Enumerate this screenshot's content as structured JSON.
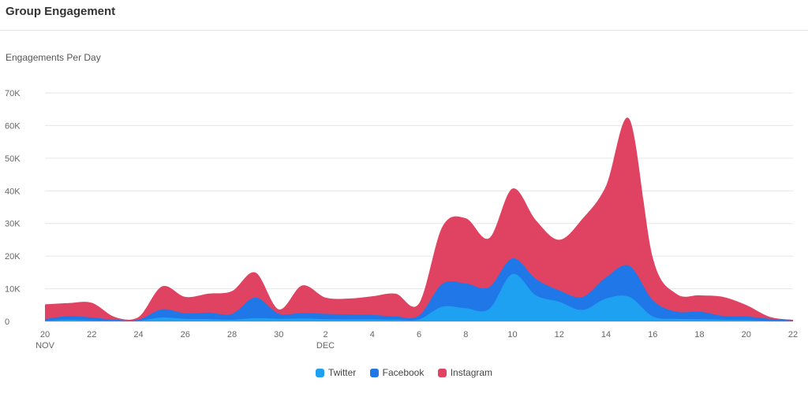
{
  "header": {
    "title": "Group Engagement"
  },
  "chart_data": {
    "type": "area",
    "stacked": true,
    "title": "Engagements Per Day",
    "xlabel": "",
    "ylabel": "",
    "ylim": [
      0,
      70000
    ],
    "yticks": [
      0,
      10000,
      20000,
      30000,
      40000,
      50000,
      60000,
      70000
    ],
    "ytick_labels": [
      "0",
      "10K",
      "20K",
      "30K",
      "40K",
      "50K",
      "60K",
      "70K"
    ],
    "grid": true,
    "legend_position": "bottom",
    "x": [
      "2023-11-20",
      "2023-11-21",
      "2023-11-22",
      "2023-11-23",
      "2023-11-24",
      "2023-11-25",
      "2023-11-26",
      "2023-11-27",
      "2023-11-28",
      "2023-11-29",
      "2023-11-30",
      "2023-12-01",
      "2023-12-02",
      "2023-12-03",
      "2023-12-04",
      "2023-12-05",
      "2023-12-06",
      "2023-12-07",
      "2023-12-08",
      "2023-12-09",
      "2023-12-10",
      "2023-12-11",
      "2023-12-12",
      "2023-12-13",
      "2023-12-14",
      "2023-12-15",
      "2023-12-16",
      "2023-12-17",
      "2023-12-18",
      "2023-12-19",
      "2023-12-20",
      "2023-12-21",
      "2023-12-22"
    ],
    "xtick_labels": [
      "20",
      "22",
      "24",
      "26",
      "28",
      "30",
      "2",
      "4",
      "6",
      "8",
      "10",
      "12",
      "14",
      "16",
      "18",
      "20",
      "22"
    ],
    "xtick_sublabels": [
      {
        "at": "20",
        "text": "NOV"
      },
      {
        "at": "2",
        "text": "DEC"
      }
    ],
    "series": [
      {
        "name": "Twitter",
        "color": "#1ea1f1",
        "values": [
          200,
          500,
          300,
          200,
          200,
          1200,
          800,
          700,
          500,
          1000,
          800,
          900,
          700,
          600,
          600,
          500,
          600,
          4500,
          4000,
          3800,
          14500,
          8000,
          6000,
          3500,
          7000,
          7500,
          1500,
          800,
          700,
          500,
          400,
          200,
          100
        ]
      },
      {
        "name": "Facebook",
        "color": "#1f77e8",
        "values": [
          500,
          1100,
          900,
          300,
          300,
          2500,
          1700,
          2000,
          1800,
          6300,
          1600,
          1700,
          1600,
          1500,
          1400,
          1000,
          1200,
          7000,
          7600,
          6700,
          4800,
          5000,
          3500,
          4000,
          6500,
          9500,
          5000,
          2200,
          2300,
          1200,
          1100,
          600,
          200
        ]
      },
      {
        "name": "Instagram",
        "color": "#e04362",
        "values": [
          4500,
          4000,
          4500,
          800,
          800,
          7000,
          5000,
          5800,
          7000,
          7700,
          1300,
          8400,
          5000,
          4900,
          5700,
          7000,
          3700,
          17500,
          20000,
          15000,
          21400,
          18000,
          15500,
          24000,
          28000,
          45000,
          13000,
          5500,
          5000,
          5800,
          3500,
          600,
          200
        ]
      }
    ]
  }
}
